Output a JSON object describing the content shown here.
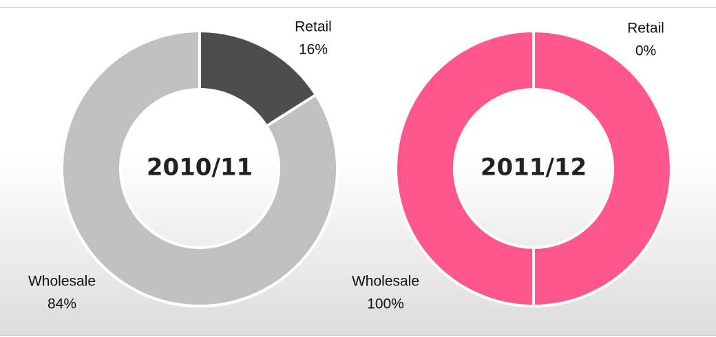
{
  "chart_data": [
    {
      "type": "donut",
      "title": "2010/11",
      "categories": [
        "Retail",
        "Wholesale"
      ],
      "values": [
        16,
        84
      ],
      "value_labels": [
        "16%",
        "84%"
      ],
      "colors": [
        "#4d4d4d",
        "#c0c0c0"
      ]
    },
    {
      "type": "donut",
      "title": "2011/12",
      "categories": [
        "Retail",
        "Wholesale"
      ],
      "values": [
        0,
        100
      ],
      "value_labels": [
        "0%",
        "100%"
      ],
      "colors": [
        "#f4f4f4",
        "#ff568b"
      ]
    }
  ]
}
